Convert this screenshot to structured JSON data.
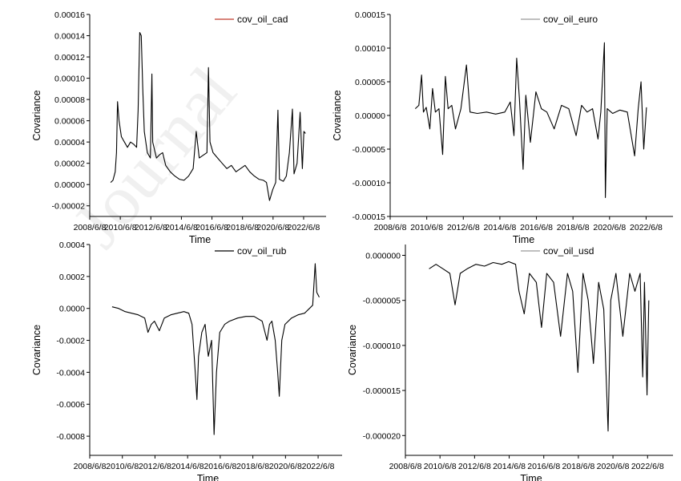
{
  "watermark": "Journal",
  "chart_data": [
    {
      "type": "line",
      "series": [
        {
          "name": "cov_oil_cad",
          "color": "#000000",
          "legend_swatch": "#c0392b",
          "points": [
            [
              2009.8,
              2e-06
            ],
            [
              2009.95,
              4e-06
            ],
            [
              2010.1,
              1.2e-05
            ],
            [
              2010.18,
              3e-05
            ],
            [
              2010.25,
              7.8e-05
            ],
            [
              2010.35,
              6e-05
            ],
            [
              2010.5,
              4.5e-05
            ],
            [
              2010.7,
              4e-05
            ],
            [
              2010.9,
              3.5e-05
            ],
            [
              2011.1,
              4e-05
            ],
            [
              2011.3,
              3.8e-05
            ],
            [
              2011.5,
              3.5e-05
            ],
            [
              2011.6,
              7e-05
            ],
            [
              2011.7,
              0.000143
            ],
            [
              2011.8,
              0.00014
            ],
            [
              2011.9,
              9e-05
            ],
            [
              2012.0,
              5e-05
            ],
            [
              2012.2,
              3e-05
            ],
            [
              2012.4,
              2.5e-05
            ],
            [
              2012.5,
              0.000104
            ],
            [
              2012.55,
              4e-05
            ],
            [
              2012.8,
              2.5e-05
            ],
            [
              2013.0,
              2.8e-05
            ],
            [
              2013.2,
              3e-05
            ],
            [
              2013.4,
              1.8e-05
            ],
            [
              2013.7,
              1.2e-05
            ],
            [
              2014.0,
              8e-06
            ],
            [
              2014.3,
              5e-06
            ],
            [
              2014.6,
              4e-06
            ],
            [
              2014.9,
              8e-06
            ],
            [
              2015.2,
              1.5e-05
            ],
            [
              2015.4,
              5e-05
            ],
            [
              2015.6,
              2.5e-05
            ],
            [
              2015.9,
              2.8e-05
            ],
            [
              2016.1,
              3e-05
            ],
            [
              2016.2,
              0.00011
            ],
            [
              2016.3,
              4e-05
            ],
            [
              2016.5,
              3e-05
            ],
            [
              2016.8,
              2.5e-05
            ],
            [
              2017.1,
              2e-05
            ],
            [
              2017.4,
              1.5e-05
            ],
            [
              2017.7,
              1.8e-05
            ],
            [
              2018.0,
              1.2e-05
            ],
            [
              2018.3,
              1.5e-05
            ],
            [
              2018.6,
              1.8e-05
            ],
            [
              2018.9,
              1.2e-05
            ],
            [
              2019.2,
              8e-06
            ],
            [
              2019.5,
              5e-06
            ],
            [
              2019.8,
              4e-06
            ],
            [
              2020.0,
              2e-06
            ],
            [
              2020.2,
              -1.5e-05
            ],
            [
              2020.4,
              -5e-06
            ],
            [
              2020.6,
              2e-06
            ],
            [
              2020.75,
              7e-05
            ],
            [
              2020.85,
              5e-06
            ],
            [
              2021.1,
              3e-06
            ],
            [
              2021.3,
              8e-06
            ],
            [
              2021.5,
              3e-05
            ],
            [
              2021.7,
              7.1e-05
            ],
            [
              2021.8,
              1e-05
            ],
            [
              2022.0,
              2e-05
            ],
            [
              2022.2,
              6.8e-05
            ],
            [
              2022.35,
              1.5e-05
            ],
            [
              2022.45,
              5e-05
            ],
            [
              2022.55,
              4.8e-05
            ]
          ]
        }
      ],
      "xlabel": "Time",
      "ylabel": "Covariance",
      "xticks": [
        "2008/6/8",
        "2010/6/8",
        "2012/6/8",
        "2014/6/8",
        "2016/6/8",
        "2018/6/8",
        "2020/6/8",
        "2022/6/8"
      ],
      "yticks": [
        "-0.00002",
        "0.00000",
        "0.00002",
        "0.00004",
        "0.00006",
        "0.00008",
        "0.00010",
        "0.00012",
        "0.00014",
        "0.00016"
      ],
      "xlim": [
        2008.43,
        2023.9
      ],
      "ylim": [
        -3e-05,
        0.00016
      ],
      "legend": "top-center",
      "grid": false
    },
    {
      "type": "line",
      "series": [
        {
          "name": "cov_oil_euro",
          "color": "#000000",
          "legend_swatch": "#999999",
          "points": [
            [
              2009.8,
              1e-05
            ],
            [
              2010.0,
              1.5e-05
            ],
            [
              2010.15,
              6e-05
            ],
            [
              2010.25,
              5e-06
            ],
            [
              2010.4,
              1.2e-05
            ],
            [
              2010.6,
              -2e-05
            ],
            [
              2010.75,
              4e-05
            ],
            [
              2010.9,
              5e-06
            ],
            [
              2011.1,
              1e-05
            ],
            [
              2011.3,
              -5.8e-05
            ],
            [
              2011.45,
              5.8e-05
            ],
            [
              2011.6,
              1e-05
            ],
            [
              2011.8,
              1.5e-05
            ],
            [
              2012.0,
              -2e-05
            ],
            [
              2012.3,
              1e-05
            ],
            [
              2012.6,
              7.5e-05
            ],
            [
              2012.8,
              5e-06
            ],
            [
              2013.2,
              3e-06
            ],
            [
              2013.7,
              5e-06
            ],
            [
              2014.2,
              2e-06
            ],
            [
              2014.7,
              5e-06
            ],
            [
              2015.0,
              2e-05
            ],
            [
              2015.2,
              -3e-05
            ],
            [
              2015.35,
              8.5e-05
            ],
            [
              2015.5,
              2.5e-05
            ],
            [
              2015.7,
              -8e-05
            ],
            [
              2015.85,
              3e-05
            ],
            [
              2016.1,
              -4e-05
            ],
            [
              2016.4,
              3.5e-05
            ],
            [
              2016.7,
              1e-05
            ],
            [
              2017.0,
              5e-06
            ],
            [
              2017.4,
              -2e-05
            ],
            [
              2017.8,
              1.5e-05
            ],
            [
              2018.2,
              1e-05
            ],
            [
              2018.6,
              -3e-05
            ],
            [
              2018.9,
              1.5e-05
            ],
            [
              2019.2,
              5e-06
            ],
            [
              2019.5,
              1e-05
            ],
            [
              2019.8,
              -3.5e-05
            ],
            [
              2019.95,
              5e-06
            ],
            [
              2020.15,
              0.000108
            ],
            [
              2020.2,
              -0.000122
            ],
            [
              2020.3,
              1e-05
            ],
            [
              2020.6,
              3e-06
            ],
            [
              2021.0,
              8e-06
            ],
            [
              2021.4,
              5e-06
            ],
            [
              2021.8,
              -6e-05
            ],
            [
              2022.0,
              1e-05
            ],
            [
              2022.15,
              5e-05
            ],
            [
              2022.3,
              -5e-05
            ],
            [
              2022.45,
              1.2e-05
            ]
          ]
        }
      ],
      "xlabel": "Time",
      "ylabel": "Covariance",
      "xticks": [
        "2008/6/8",
        "2010/6/8",
        "2012/6/8",
        "2014/6/8",
        "2016/6/8",
        "2018/6/8",
        "2020/6/8",
        "2022/6/8"
      ],
      "yticks": [
        "-0.00015",
        "-0.00010",
        "-0.00005",
        "0.00000",
        "0.00005",
        "0.00010",
        "0.00015"
      ],
      "xlim": [
        2008.43,
        2023.9
      ],
      "ylim": [
        -0.00015,
        0.00015
      ],
      "legend": "top-center",
      "grid": false
    },
    {
      "type": "line",
      "series": [
        {
          "name": "cov_oil_rub",
          "color": "#000000",
          "legend_swatch": "#000000",
          "points": [
            [
              2009.8,
              1e-05
            ],
            [
              2010.2,
              0.0
            ],
            [
              2010.6,
              -2e-05
            ],
            [
              2011.0,
              -3e-05
            ],
            [
              2011.4,
              -4e-05
            ],
            [
              2011.8,
              -6e-05
            ],
            [
              2012.0,
              -0.00015
            ],
            [
              2012.2,
              -0.0001
            ],
            [
              2012.4,
              -8e-05
            ],
            [
              2012.7,
              -0.00014
            ],
            [
              2013.0,
              -6e-05
            ],
            [
              2013.4,
              -4e-05
            ],
            [
              2013.8,
              -3e-05
            ],
            [
              2014.2,
              -2e-05
            ],
            [
              2014.5,
              -3e-05
            ],
            [
              2014.7,
              -0.0001
            ],
            [
              2014.9,
              -0.0004
            ],
            [
              2015.0,
              -0.00057
            ],
            [
              2015.1,
              -0.0003
            ],
            [
              2015.3,
              -0.00015
            ],
            [
              2015.5,
              -0.0001
            ],
            [
              2015.7,
              -0.0003
            ],
            [
              2015.9,
              -0.0002
            ],
            [
              2016.05,
              -0.00079
            ],
            [
              2016.2,
              -0.0004
            ],
            [
              2016.4,
              -0.00015
            ],
            [
              2016.7,
              -0.0001
            ],
            [
              2017.0,
              -8e-05
            ],
            [
              2017.5,
              -6e-05
            ],
            [
              2018.0,
              -5e-05
            ],
            [
              2018.5,
              -5e-05
            ],
            [
              2019.0,
              -8e-05
            ],
            [
              2019.3,
              -0.0002
            ],
            [
              2019.45,
              -0.0001
            ],
            [
              2019.6,
              -8e-05
            ],
            [
              2019.8,
              -0.0002
            ],
            [
              2019.95,
              -0.0004
            ],
            [
              2020.05,
              -0.00055
            ],
            [
              2020.2,
              -0.0002
            ],
            [
              2020.4,
              -0.0001
            ],
            [
              2020.8,
              -6e-05
            ],
            [
              2021.2,
              -4e-05
            ],
            [
              2021.6,
              -3e-05
            ],
            [
              2021.9,
              0.0
            ],
            [
              2022.1,
              2e-05
            ],
            [
              2022.25,
              0.00028
            ],
            [
              2022.35,
              0.0001
            ],
            [
              2022.5,
              7e-05
            ]
          ]
        }
      ],
      "xlabel": "Time",
      "ylabel": "Covariance",
      "xticks": [
        "2008/6/8",
        "2010/6/8",
        "2012/6/8",
        "2014/6/8",
        "2016/6/8",
        "2018/6/8",
        "2020/6/8",
        "2022/6/8"
      ],
      "yticks": [
        "-0.0008",
        "-0.0006",
        "-0.0004",
        "-0.0002",
        "0.0000",
        "0.0002",
        "0.0004"
      ],
      "xlim": [
        2008.43,
        2023.9
      ],
      "ylim": [
        -0.00092,
        0.0004
      ],
      "legend": "top-center",
      "grid": false
    },
    {
      "type": "line",
      "series": [
        {
          "name": "cov_oil_usd",
          "color": "#000000",
          "legend_swatch": "#999999",
          "points": [
            [
              2009.8,
              -1.5e-06
            ],
            [
              2010.2,
              -1e-06
            ],
            [
              2010.6,
              -1.5e-06
            ],
            [
              2011.0,
              -2e-06
            ],
            [
              2011.3,
              -5.5e-06
            ],
            [
              2011.6,
              -2e-06
            ],
            [
              2012.0,
              -1.5e-06
            ],
            [
              2012.5,
              -1e-06
            ],
            [
              2013.0,
              -1.2e-06
            ],
            [
              2013.5,
              -8e-07
            ],
            [
              2014.0,
              -1e-06
            ],
            [
              2014.4,
              -7e-07
            ],
            [
              2014.8,
              -1e-06
            ],
            [
              2015.0,
              -4e-06
            ],
            [
              2015.3,
              -6.5e-06
            ],
            [
              2015.6,
              -2e-06
            ],
            [
              2016.0,
              -3e-06
            ],
            [
              2016.3,
              -8e-06
            ],
            [
              2016.6,
              -2e-06
            ],
            [
              2017.0,
              -3e-06
            ],
            [
              2017.4,
              -9e-06
            ],
            [
              2017.8,
              -2e-06
            ],
            [
              2018.1,
              -4e-06
            ],
            [
              2018.4,
              -1.3e-05
            ],
            [
              2018.7,
              -2e-06
            ],
            [
              2019.0,
              -5e-06
            ],
            [
              2019.3,
              -1.2e-05
            ],
            [
              2019.6,
              -3e-06
            ],
            [
              2019.9,
              -6e-06
            ],
            [
              2020.15,
              -1.95e-05
            ],
            [
              2020.3,
              -5e-06
            ],
            [
              2020.6,
              -2e-06
            ],
            [
              2021.0,
              -9e-06
            ],
            [
              2021.4,
              -2e-06
            ],
            [
              2021.7,
              -4e-06
            ],
            [
              2022.0,
              -2e-06
            ],
            [
              2022.15,
              -1.35e-05
            ],
            [
              2022.25,
              -3e-06
            ],
            [
              2022.4,
              -1.55e-05
            ],
            [
              2022.5,
              -5e-06
            ]
          ]
        }
      ],
      "xlabel": "Time",
      "ylabel": "Covariance",
      "xticks": [
        "2008/6/8",
        "2010/6/8",
        "2012/6/8",
        "2014/6/8",
        "2016/6/8",
        "2018/6/8",
        "2020/6/8",
        "2022/6/8"
      ],
      "yticks": [
        "-0.000020",
        "-0.000015",
        "-0.000010",
        "-0.000005",
        "0.000000"
      ],
      "xlim": [
        2008.43,
        2023.9
      ],
      "ylim": [
        -2.22e-05,
        1.2e-06
      ],
      "legend": "top-center",
      "grid": false
    }
  ]
}
